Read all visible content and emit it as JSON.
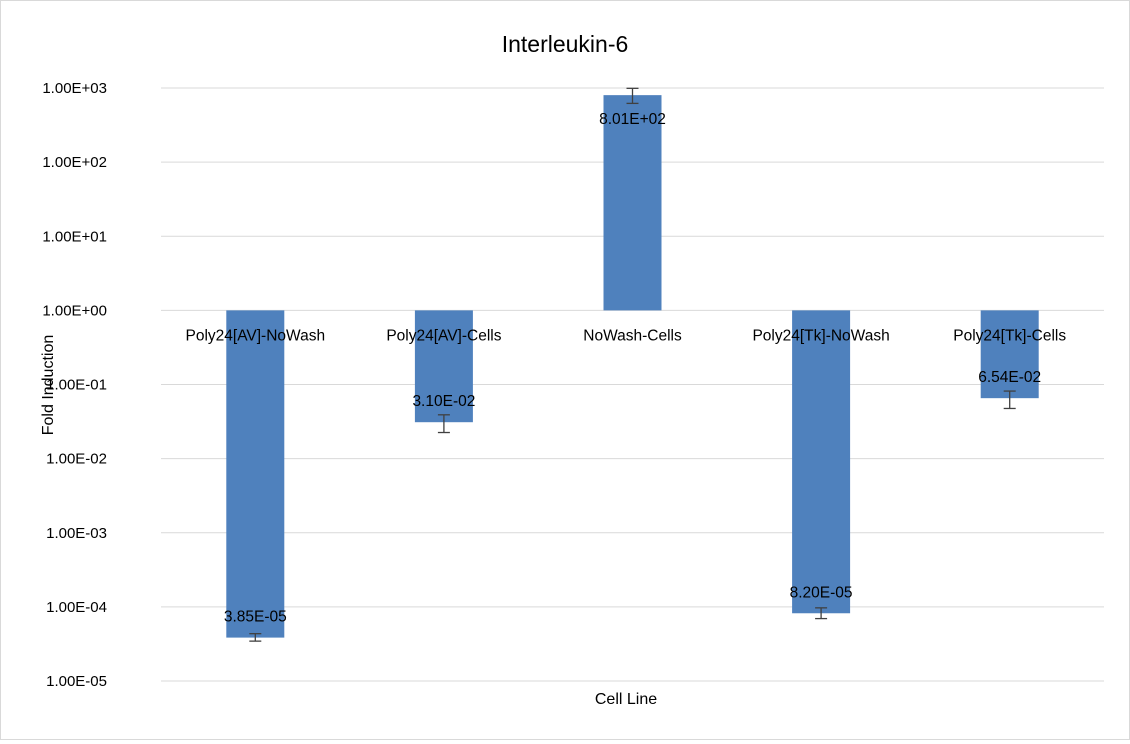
{
  "chart_data": {
    "type": "bar",
    "title": "Interleukin-6",
    "xlabel": "Cell Line",
    "ylabel": "Fold Induction",
    "scale": "log",
    "base_value": 1,
    "ylim": [
      1e-05,
      1000
    ],
    "y_ticks": [
      {
        "value": 1000,
        "label": "1.00E+03"
      },
      {
        "value": 100,
        "label": "1.00E+02"
      },
      {
        "value": 10,
        "label": "1.00E+01"
      },
      {
        "value": 1,
        "label": "1.00E+00"
      },
      {
        "value": 0.1,
        "label": "1.00E-01"
      },
      {
        "value": 0.01,
        "label": "1.00E-02"
      },
      {
        "value": 0.001,
        "label": "1.00E-03"
      },
      {
        "value": 0.0001,
        "label": "1.00E-04"
      },
      {
        "value": 1e-05,
        "label": "1.00E-05"
      }
    ],
    "categories": [
      "Poly24[AV]-NoWash",
      "Poly24[AV]-Cells",
      "NoWash-Cells",
      "Poly24[Tk]-NoWash",
      "Poly24[Tk]-Cells"
    ],
    "values": [
      3.85e-05,
      0.031,
      801,
      8.2e-05,
      0.0654
    ],
    "value_labels": [
      "3.85E-05",
      "3.10E-02",
      "8.01E+02",
      "8.20E-05",
      "6.54E-02"
    ],
    "error_low": [
      3.45e-05,
      0.0225,
      620,
      6.95e-05,
      0.0475
    ],
    "error_high": [
      4.35e-05,
      0.039,
      990,
      9.7e-05,
      0.0815
    ],
    "bar_color": "#4f81bd",
    "error_color": "#404040",
    "grid": true,
    "legend": false
  }
}
